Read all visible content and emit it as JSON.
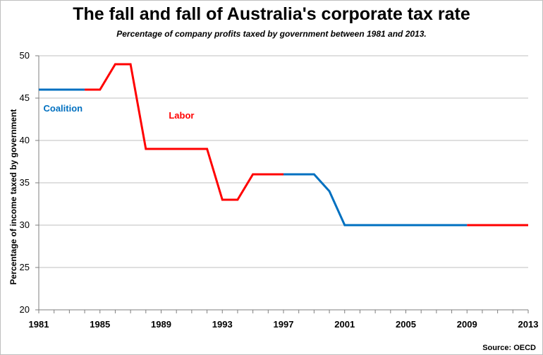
{
  "chart_data": {
    "type": "line",
    "title": "The fall and fall of Australia's corporate tax rate",
    "subtitle": "Percentage of company profits taxed by government between 1981 and 2013.",
    "xlabel": "",
    "ylabel": "Percentage of income taxed by government",
    "xlim": [
      1981,
      2013
    ],
    "ylim": [
      20,
      50
    ],
    "x_ticks": [
      "1981",
      "1985",
      "1989",
      "1993",
      "1997",
      "2001",
      "2005",
      "2009",
      "2013"
    ],
    "y_ticks": [
      "20",
      "25",
      "30",
      "35",
      "40",
      "45",
      "50"
    ],
    "grid": "horizontal",
    "series": [
      {
        "name": "Coalition",
        "color": "#0070C0",
        "segments": [
          [
            [
              1981,
              46
            ],
            [
              1984,
              46
            ]
          ],
          [
            [
              1997,
              36
            ],
            [
              1999,
              36
            ],
            [
              2000,
              34
            ],
            [
              2001,
              30
            ],
            [
              2009,
              30
            ]
          ]
        ]
      },
      {
        "name": "Labor",
        "color": "#FF0000",
        "segments": [
          [
            [
              1984,
              46
            ],
            [
              1985,
              46
            ],
            [
              1986,
              49
            ],
            [
              1987,
              49
            ],
            [
              1988,
              39
            ],
            [
              1992,
              39
            ],
            [
              1993,
              33
            ],
            [
              1994,
              33
            ],
            [
              1995,
              36
            ],
            [
              1997,
              36
            ]
          ],
          [
            [
              2009,
              30
            ],
            [
              2013,
              30
            ]
          ]
        ]
      }
    ],
    "annotations": [
      {
        "text": "Coalition",
        "x": 1981.3,
        "y": 43.4,
        "color": "#0070C0"
      },
      {
        "text": "Labor",
        "x": 1989.5,
        "y": 42.6,
        "color": "#FF0000"
      }
    ],
    "source": "Source: OECD"
  }
}
